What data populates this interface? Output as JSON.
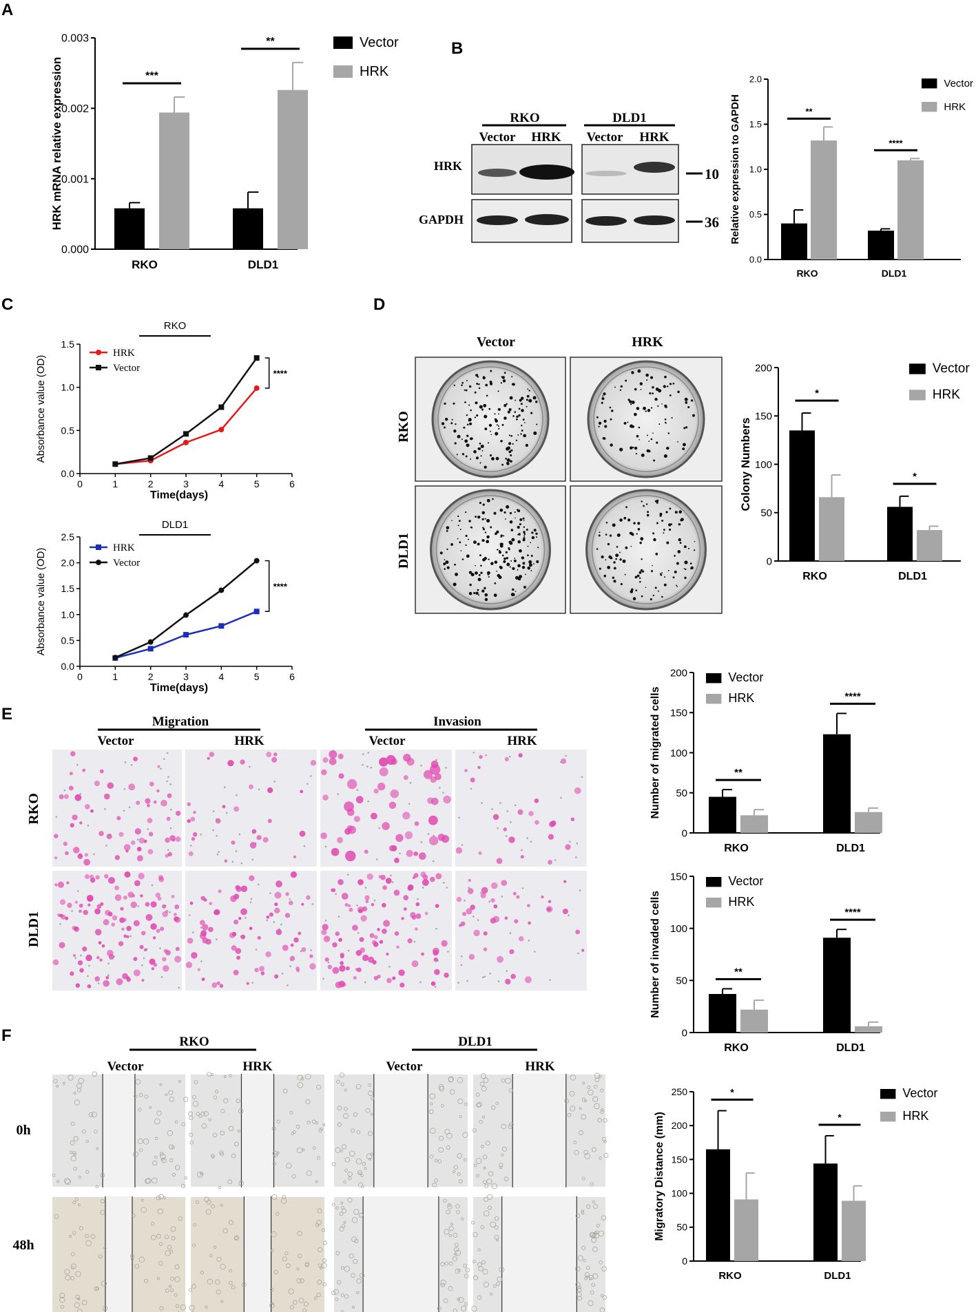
{
  "panels": {
    "A": {
      "letter": "A",
      "chart_data": {
        "type": "bar",
        "ylabel": "HRK mRNA relative expression",
        "categories": [
          "RKO",
          "DLD1"
        ],
        "ylim": [
          0,
          0.003
        ],
        "yticks": [
          "0.000",
          "0.001",
          "0.002",
          "0.003"
        ],
        "series": [
          {
            "name": "Vector",
            "values": [
              0.00058,
              0.00058
            ],
            "errors": [
              8e-05,
              0.00023
            ]
          },
          {
            "name": "HRK",
            "values": [
              0.00194,
              0.00226
            ],
            "errors": [
              0.00022,
              0.00039
            ]
          }
        ],
        "significance": [
          "***",
          "**"
        ],
        "legend": [
          "Vector",
          "HRK"
        ]
      }
    },
    "B": {
      "letter": "B",
      "blot": {
        "groups": [
          "RKO",
          "DLD1"
        ],
        "lanes": [
          "Vector",
          "HRK",
          "Vector",
          "HRK"
        ],
        "rows": [
          "HRK",
          "GAPDH"
        ],
        "markers": [
          "10",
          "36"
        ]
      },
      "chart_data": {
        "type": "bar",
        "ylabel": "Relative expression to GAPDH",
        "categories": [
          "RKO",
          "DLD1"
        ],
        "ylim": [
          0,
          2.0
        ],
        "yticks": [
          "0.0",
          "0.5",
          "1.0",
          "1.5",
          "2.0"
        ],
        "series": [
          {
            "name": "Vector",
            "values": [
              0.4,
              0.32
            ],
            "errors": [
              0.15,
              0.02
            ]
          },
          {
            "name": "HRK",
            "values": [
              1.32,
              1.1
            ],
            "errors": [
              0.15,
              0.02
            ]
          }
        ],
        "significance": [
          "**",
          "****"
        ],
        "legend": [
          "Vector",
          "HRK"
        ]
      }
    },
    "C": {
      "letter": "C",
      "charts": [
        {
          "type": "line",
          "title": "RKO",
          "xlabel": "Time(days)",
          "ylabel": "Absorbance value (OD)",
          "x": [
            1,
            2,
            3,
            4,
            5
          ],
          "xlim": [
            0,
            6
          ],
          "ylim": [
            0,
            1.5
          ],
          "xticks": [
            "0",
            "1",
            "2",
            "3",
            "4",
            "5",
            "6"
          ],
          "yticks": [
            "0.0",
            "0.5",
            "1.0",
            "1.5"
          ],
          "series": [
            {
              "name": "HRK",
              "color": "#e8191a",
              "marker": "circle",
              "values": [
                0.11,
                0.15,
                0.36,
                0.51,
                0.99
              ]
            },
            {
              "name": "Vector",
              "color": "#111111",
              "marker": "square",
              "values": [
                0.11,
                0.18,
                0.46,
                0.77,
                1.34
              ]
            }
          ],
          "significance": "****"
        },
        {
          "type": "line",
          "title": "DLD1",
          "xlabel": "Time(days)",
          "ylabel": "Absorbance value (OD)",
          "x": [
            1,
            2,
            3,
            4,
            5
          ],
          "xlim": [
            0,
            6
          ],
          "ylim": [
            0,
            2.5
          ],
          "xticks": [
            "0",
            "1",
            "2",
            "3",
            "4",
            "5",
            "6"
          ],
          "yticks": [
            "0.0",
            "0.5",
            "1.0",
            "1.5",
            "2.0",
            "2.5"
          ],
          "series": [
            {
              "name": "HRK",
              "color": "#1a2fb8",
              "marker": "square",
              "values": [
                0.16,
                0.34,
                0.61,
                0.78,
                1.06
              ]
            },
            {
              "name": "Vector",
              "color": "#111111",
              "marker": "circle",
              "values": [
                0.17,
                0.47,
                0.99,
                1.47,
                2.04
              ]
            }
          ],
          "significance": "****"
        }
      ]
    },
    "D": {
      "letter": "D",
      "columns": [
        "Vector",
        "HRK"
      ],
      "rows": [
        "RKO",
        "DLD1"
      ],
      "chart_data": {
        "type": "bar",
        "ylabel": "Colony Numbers",
        "categories": [
          "RKO",
          "DLD1"
        ],
        "ylim": [
          0,
          200
        ],
        "yticks": [
          "0",
          "50",
          "100",
          "150",
          "200"
        ],
        "series": [
          {
            "name": "Vector",
            "values": [
              135,
              56
            ],
            "errors": [
              18,
              11
            ]
          },
          {
            "name": "HRK",
            "values": [
              66,
              32
            ],
            "errors": [
              23,
              4
            ]
          }
        ],
        "significance": [
          "*",
          "*"
        ],
        "legend": [
          "Vector",
          "HRK"
        ]
      }
    },
    "E": {
      "letter": "E",
      "groups": [
        "Migration",
        "Invasion"
      ],
      "columns": [
        "Vector",
        "HRK",
        "Vector",
        "HRK"
      ],
      "rows": [
        "RKO",
        "DLD1"
      ],
      "charts": [
        {
          "type": "bar",
          "ylabel": "Number of migrated cells",
          "categories": [
            "RKO",
            "DLD1"
          ],
          "ylim": [
            0,
            200
          ],
          "yticks": [
            "0",
            "50",
            "100",
            "150",
            "200"
          ],
          "series": [
            {
              "name": "Vector",
              "values": [
                45,
                123
              ],
              "errors": [
                9,
                26
              ]
            },
            {
              "name": "HRK",
              "values": [
                22,
                26
              ],
              "errors": [
                7,
                5
              ]
            }
          ],
          "significance": [
            "**",
            "****"
          ],
          "legend": [
            "Vector",
            "HRK"
          ]
        },
        {
          "type": "bar",
          "ylabel": "Number of invaded cells",
          "categories": [
            "RKO",
            "DLD1"
          ],
          "ylim": [
            0,
            150
          ],
          "yticks": [
            "0",
            "50",
            "100",
            "150"
          ],
          "series": [
            {
              "name": "Vector",
              "values": [
                37,
                91
              ],
              "errors": [
                5,
                8
              ]
            },
            {
              "name": "HRK",
              "values": [
                22,
                6
              ],
              "errors": [
                9,
                4
              ]
            }
          ],
          "significance": [
            "**",
            "****"
          ],
          "legend": [
            "Vector",
            "HRK"
          ]
        }
      ]
    },
    "F": {
      "letter": "F",
      "groups": [
        "RKO",
        "DLD1"
      ],
      "columns": [
        "Vector",
        "HRK",
        "Vector",
        "HRK"
      ],
      "rows": [
        "0h",
        "48h"
      ],
      "chart_data": {
        "type": "bar",
        "ylabel": "Migratory Distance (mm)",
        "categories": [
          "RKO",
          "DLD1"
        ],
        "ylim": [
          0,
          250
        ],
        "yticks": [
          "0",
          "50",
          "100",
          "150",
          "200",
          "250"
        ],
        "series": [
          {
            "name": "Vector",
            "values": [
              165,
              144
            ],
            "errors": [
              57,
              41
            ]
          },
          {
            "name": "HRK",
            "values": [
              91,
              89
            ],
            "errors": [
              39,
              22
            ]
          }
        ],
        "significance": [
          "*",
          "*"
        ],
        "legend": [
          "Vector",
          "HRK"
        ]
      }
    }
  },
  "colors": {
    "vector": "#000000",
    "hrk": "#a6a6a6",
    "stain": "#e04bb0"
  }
}
